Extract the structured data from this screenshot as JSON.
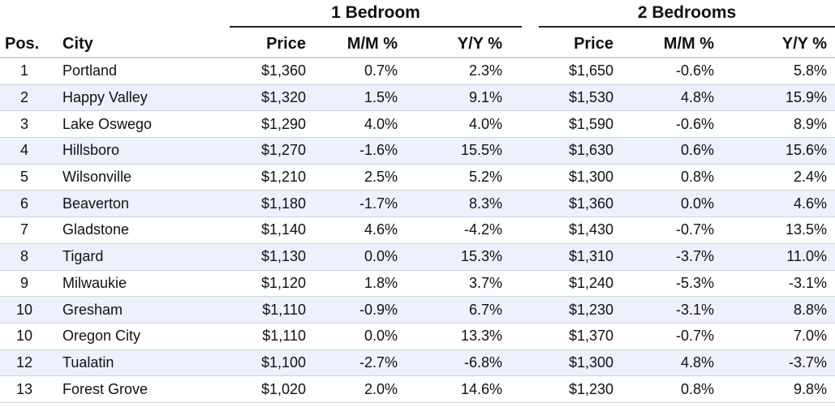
{
  "groups": {
    "one_bedroom": "1 Bedroom",
    "two_bedrooms": "2 Bedrooms"
  },
  "headers": {
    "pos": "Pos.",
    "city": "City",
    "price1": "Price",
    "mm1": "M/M %",
    "yy1": "Y/Y %",
    "price2": "Price",
    "mm2": "M/M %",
    "yy2": "Y/Y %"
  },
  "rows": [
    {
      "pos": "1",
      "city": "Portland",
      "price1": "$1,360",
      "mm1": "0.7%",
      "yy1": "2.3%",
      "price2": "$1,650",
      "mm2": "-0.6%",
      "yy2": "5.8%"
    },
    {
      "pos": "2",
      "city": "Happy Valley",
      "price1": "$1,320",
      "mm1": "1.5%",
      "yy1": "9.1%",
      "price2": "$1,530",
      "mm2": "4.8%",
      "yy2": "15.9%"
    },
    {
      "pos": "3",
      "city": "Lake Oswego",
      "price1": "$1,290",
      "mm1": "4.0%",
      "yy1": "4.0%",
      "price2": "$1,590",
      "mm2": "-0.6%",
      "yy2": "8.9%"
    },
    {
      "pos": "4",
      "city": "Hillsboro",
      "price1": "$1,270",
      "mm1": "-1.6%",
      "yy1": "15.5%",
      "price2": "$1,630",
      "mm2": "0.6%",
      "yy2": "15.6%"
    },
    {
      "pos": "5",
      "city": "Wilsonville",
      "price1": "$1,210",
      "mm1": "2.5%",
      "yy1": "5.2%",
      "price2": "$1,300",
      "mm2": "0.8%",
      "yy2": "2.4%"
    },
    {
      "pos": "6",
      "city": "Beaverton",
      "price1": "$1,180",
      "mm1": "-1.7%",
      "yy1": "8.3%",
      "price2": "$1,360",
      "mm2": "0.0%",
      "yy2": "4.6%"
    },
    {
      "pos": "7",
      "city": "Gladstone",
      "price1": "$1,140",
      "mm1": "4.6%",
      "yy1": "-4.2%",
      "price2": "$1,430",
      "mm2": "-0.7%",
      "yy2": "13.5%"
    },
    {
      "pos": "8",
      "city": "Tigard",
      "price1": "$1,130",
      "mm1": "0.0%",
      "yy1": "15.3%",
      "price2": "$1,310",
      "mm2": "-3.7%",
      "yy2": "11.0%"
    },
    {
      "pos": "9",
      "city": "Milwaukie",
      "price1": "$1,120",
      "mm1": "1.8%",
      "yy1": "3.7%",
      "price2": "$1,240",
      "mm2": "-5.3%",
      "yy2": "-3.1%"
    },
    {
      "pos": "10",
      "city": "Gresham",
      "price1": "$1,110",
      "mm1": "-0.9%",
      "yy1": "6.7%",
      "price2": "$1,230",
      "mm2": "-3.1%",
      "yy2": "8.8%"
    },
    {
      "pos": "10",
      "city": "Oregon City",
      "price1": "$1,110",
      "mm1": "0.0%",
      "yy1": "13.3%",
      "price2": "$1,370",
      "mm2": "-0.7%",
      "yy2": "7.0%"
    },
    {
      "pos": "12",
      "city": "Tualatin",
      "price1": "$1,100",
      "mm1": "-2.7%",
      "yy1": "-6.8%",
      "price2": "$1,300",
      "mm2": "4.8%",
      "yy2": "-3.7%"
    },
    {
      "pos": "13",
      "city": "Forest Grove",
      "price1": "$1,020",
      "mm1": "2.0%",
      "yy1": "14.6%",
      "price2": "$1,230",
      "mm2": "0.8%",
      "yy2": "9.8%"
    }
  ]
}
